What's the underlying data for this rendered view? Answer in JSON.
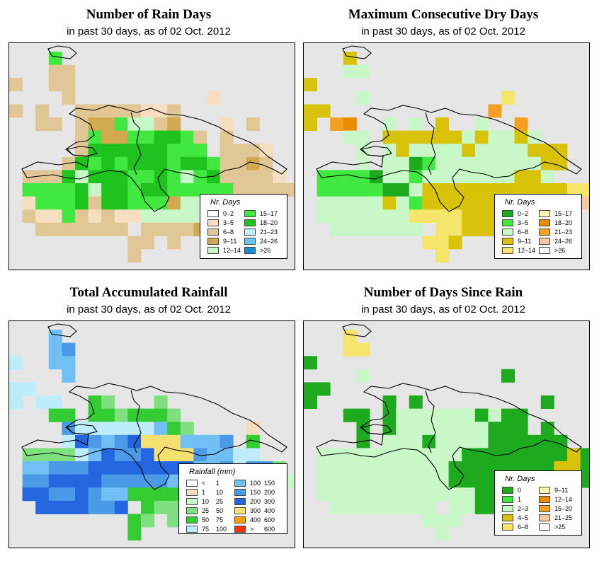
{
  "panels": [
    {
      "title": "Number of Rain Days",
      "subtitle": "in past 30 days, as of  02 Oct. 2012",
      "legend": {
        "title": "Nr. Days",
        "items": [
          {
            "label": "0–2",
            "color": "#ffffff"
          },
          {
            "label": "3–5",
            "color": "#f5dfc0"
          },
          {
            "label": "6–8",
            "color": "#e2c796"
          },
          {
            "label": "9–11",
            "color": "#d1a94e"
          },
          {
            "label": "12–14",
            "color": "#c8f7c8"
          },
          {
            "label": "15–17",
            "color": "#40e840"
          },
          {
            "label": "18–20",
            "color": "#1ec31e"
          },
          {
            "label": "21–23",
            "color": "#bff0ff"
          },
          {
            "label": "24–26",
            "color": "#66c6ef"
          },
          {
            "label": ">26",
            "color": "#1a8fd0"
          }
        ]
      }
    },
    {
      "title": "Maximum Consecutive Dry Days",
      "subtitle": "in past 30 days, as of  02 Oct. 2012",
      "legend": {
        "title": "Nr. Days",
        "items": [
          {
            "label": "0–2",
            "color": "#1eaa1e"
          },
          {
            "label": "3–5",
            "color": "#40e840"
          },
          {
            "label": "6–8",
            "color": "#c8f7c8"
          },
          {
            "label": "9–11",
            "color": "#d8c20a"
          },
          {
            "label": "12–14",
            "color": "#f5e56a"
          },
          {
            "label": "15–17",
            "color": "#fff7b0"
          },
          {
            "label": "18–20",
            "color": "#ea8c00"
          },
          {
            "label": "21–23",
            "color": "#f5a020"
          },
          {
            "label": "24–26",
            "color": "#f8c8a0"
          },
          {
            "label": ">26",
            "color": "#ffffff"
          }
        ]
      }
    },
    {
      "title": "Total Accumulated Rainfall",
      "subtitle": "in past 30 days, as of  02 Oct. 2012",
      "legend": {
        "title": "Rainfall (mm)",
        "items": [
          {
            "label": "<",
            "label2": "1",
            "color": "#ffffff"
          },
          {
            "label": "1",
            "label2": "10",
            "color": "#f5dfc0"
          },
          {
            "label": "10",
            "label2": "25",
            "color": "#c8f7c8"
          },
          {
            "label": "25",
            "label2": "50",
            "color": "#7ee07e"
          },
          {
            "label": "50",
            "label2": "75",
            "color": "#33cc33"
          },
          {
            "label": "75",
            "label2": "100",
            "color": "#bdecfb"
          },
          {
            "label": "100",
            "label2": "150",
            "color": "#70c0f5"
          },
          {
            "label": "150",
            "label2": "200",
            "color": "#4a9ae8"
          },
          {
            "label": "200",
            "label2": "300",
            "color": "#2466e0"
          },
          {
            "label": "300",
            "label2": "400",
            "color": "#f5e170"
          },
          {
            "label": "400",
            "label2": "600",
            "color": "#f5a000"
          },
          {
            "label": ">",
            "label2": "600",
            "color": "#ff3000"
          }
        ]
      }
    },
    {
      "title": "Number of Days Since Rain",
      "subtitle": "in past 30 days, as of  02 Oct. 2012",
      "legend": {
        "title": "Nr. Days",
        "items": [
          {
            "label": "0",
            "color": "#1eaa1e"
          },
          {
            "label": "1",
            "color": "#40e840"
          },
          {
            "label": "2–3",
            "color": "#c8f7c8"
          },
          {
            "label": "4–5",
            "color": "#d8c20a"
          },
          {
            "label": "6–8",
            "color": "#f5e56a"
          },
          {
            "label": "9–11",
            "color": "#fff7b0"
          },
          {
            "label": "12–14",
            "color": "#ea8c00"
          },
          {
            "label": "15–20",
            "color": "#f5a020"
          },
          {
            "label": "21–25",
            "color": "#f8c8a0"
          },
          {
            "label": ">25",
            "color": "#ffffff"
          }
        ]
      }
    }
  ]
}
